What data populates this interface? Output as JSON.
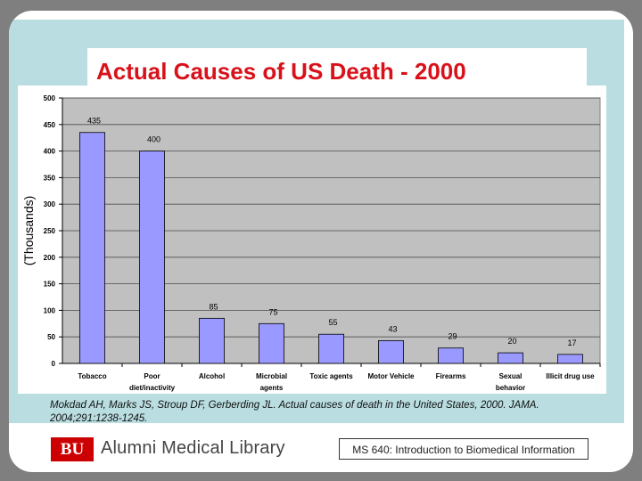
{
  "slide": {
    "title": "Actual Causes of US Death - 2000",
    "citation": "Mokdad AH, Marks JS, Stroup DF, Gerberding JL. Actual causes of death in the United States, 2000. JAMA. 2004;291:1238-1245.",
    "footer": {
      "logo_text": "BU",
      "library_name": "Alumni Medical Library",
      "course": "MS 640: Introduction to Biomedical Information"
    }
  },
  "colors": {
    "bar": "#9999ff",
    "plot_background": "#c0c0c0",
    "title": "#d9111a",
    "panel": "#b9dde0"
  },
  "chart_data": {
    "type": "bar",
    "categories": [
      [
        "Tobacco"
      ],
      [
        "Poor",
        "diet/inactivity"
      ],
      [
        "Alcohol"
      ],
      [
        "Microbial",
        "agents"
      ],
      [
        "Toxic agents"
      ],
      [
        "Motor Vehicle"
      ],
      [
        "Firearms"
      ],
      [
        "Sexual",
        "behavior"
      ],
      [
        "Illicit drug use"
      ]
    ],
    "values": [
      435,
      400,
      85,
      75,
      55,
      43,
      29,
      20,
      17
    ],
    "data_labels": [
      "435",
      "400",
      "85",
      "75",
      "55",
      "43",
      "29",
      "20",
      "17"
    ],
    "ylabel": "(Thousands)",
    "ylim": [
      0,
      500
    ],
    "yticks": [
      0,
      50,
      100,
      150,
      200,
      250,
      300,
      350,
      400,
      450,
      500
    ],
    "grid": true,
    "legend": "none"
  }
}
